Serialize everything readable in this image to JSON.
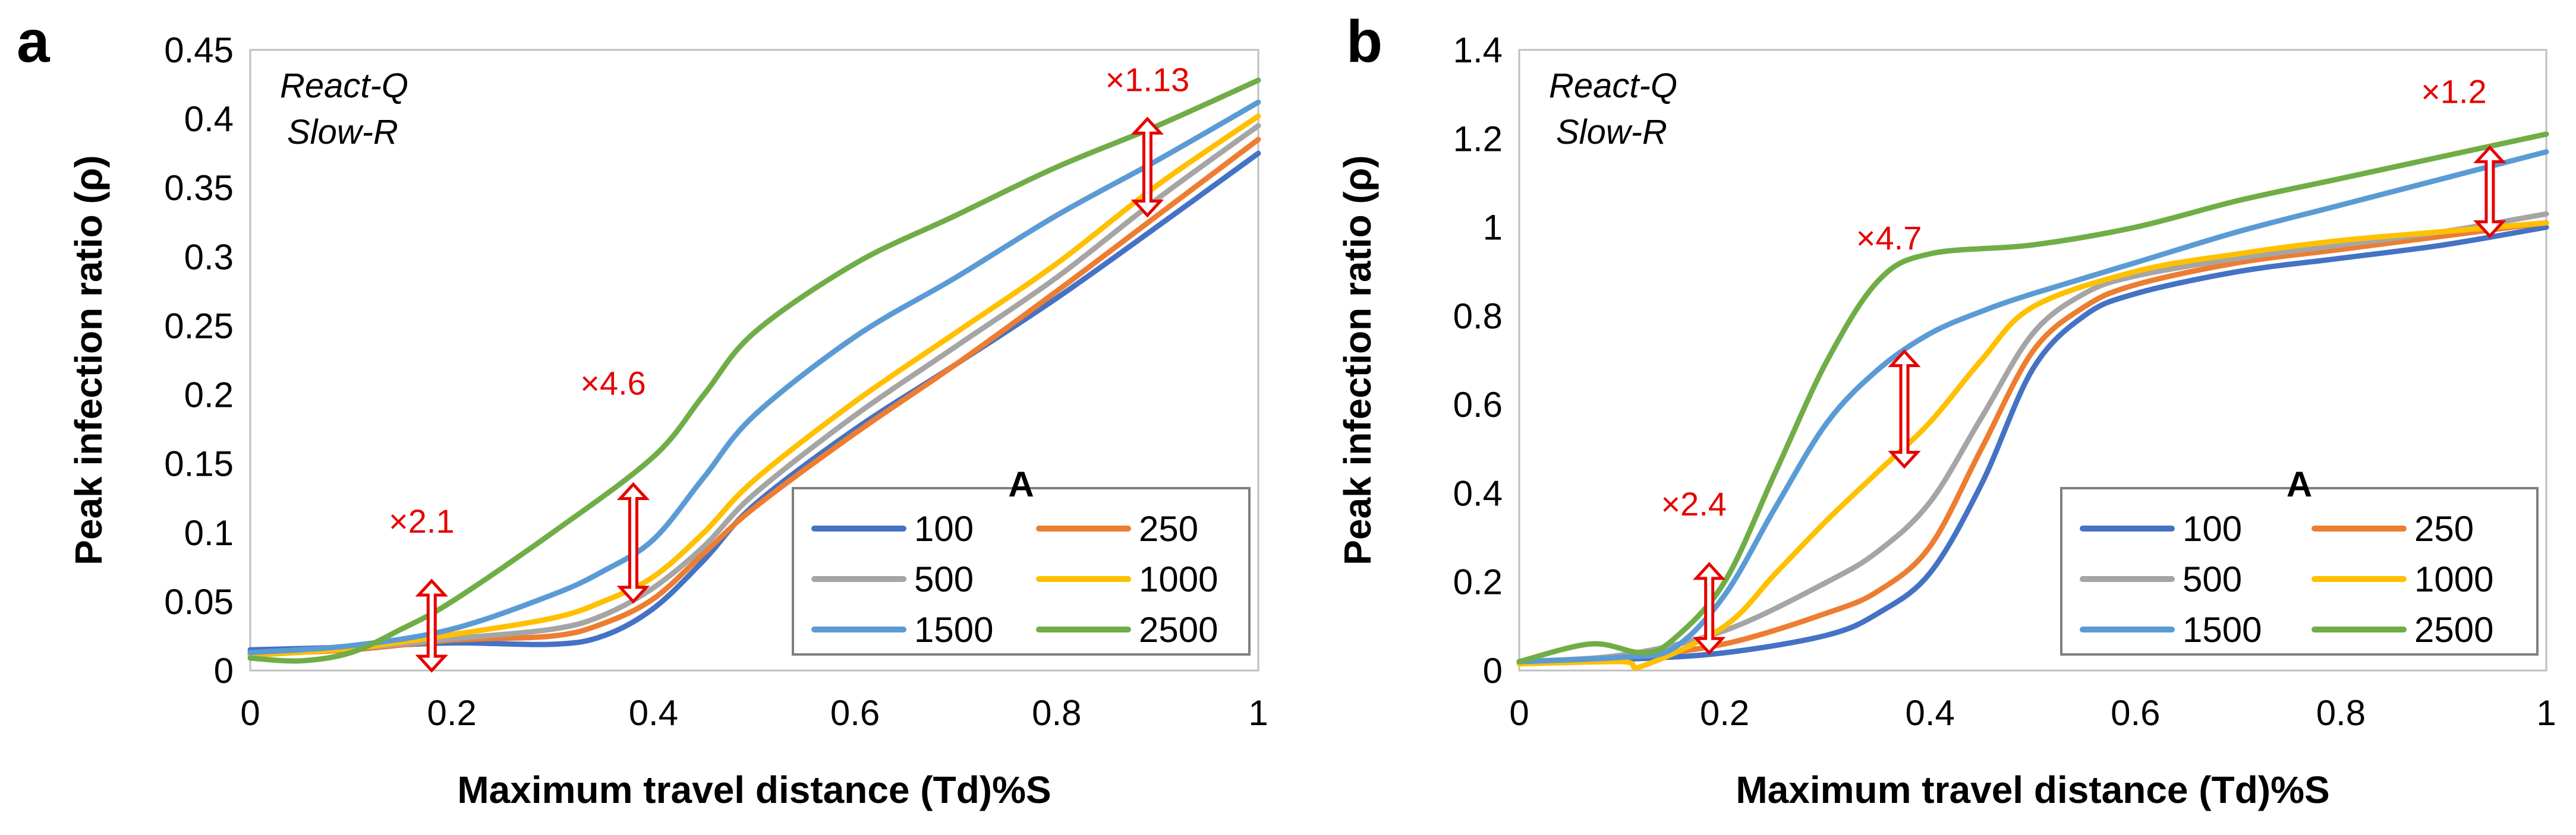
{
  "chart_data": [
    {
      "type": "line",
      "panel_label": "a",
      "conditions": [
        "React-Q",
        "Slow-R"
      ],
      "xlabel": "Maximum travel distance (Td)%S",
      "ylabel": "Peak infection ratio (ρ)",
      "xlim": [
        0,
        1
      ],
      "ylim": [
        0,
        0.45
      ],
      "xticks": [
        "0",
        "0.2",
        "0.4",
        "0.6",
        "0.8",
        "1"
      ],
      "yticks": [
        "0",
        "0.05",
        "0.1",
        "0.15",
        "0.2",
        "0.25",
        "0.3",
        "0.35",
        "0.4",
        "0.45"
      ],
      "grid": false,
      "legend": {
        "title": "A",
        "position": "bottom-right"
      },
      "series": [
        {
          "name": "100",
          "color": "#4472C4",
          "x": [
            0,
            0.1,
            0.2,
            0.3,
            0.35,
            0.4,
            0.45,
            0.5,
            0.6,
            0.7,
            0.8,
            0.9,
            1.0
          ],
          "y": [
            0.015,
            0.017,
            0.02,
            0.019,
            0.025,
            0.045,
            0.08,
            0.12,
            0.175,
            0.222,
            0.27,
            0.322,
            0.375
          ]
        },
        {
          "name": "250",
          "color": "#ED7D31",
          "x": [
            0,
            0.1,
            0.2,
            0.3,
            0.35,
            0.4,
            0.45,
            0.5,
            0.6,
            0.7,
            0.8,
            0.9,
            1.0
          ],
          "y": [
            0.012,
            0.015,
            0.022,
            0.025,
            0.034,
            0.052,
            0.085,
            0.118,
            0.172,
            0.222,
            0.275,
            0.33,
            0.385
          ]
        },
        {
          "name": "500",
          "color": "#A5A5A5",
          "x": [
            0,
            0.1,
            0.2,
            0.3,
            0.35,
            0.4,
            0.45,
            0.5,
            0.6,
            0.7,
            0.8,
            0.9,
            1.0
          ],
          "y": [
            0.013,
            0.016,
            0.023,
            0.03,
            0.04,
            0.06,
            0.09,
            0.128,
            0.185,
            0.235,
            0.285,
            0.342,
            0.395
          ]
        },
        {
          "name": "1000",
          "color": "#FFC000",
          "x": [
            0,
            0.1,
            0.2,
            0.3,
            0.35,
            0.4,
            0.45,
            0.5,
            0.6,
            0.7,
            0.8,
            0.9,
            1.0
          ],
          "y": [
            0.011,
            0.016,
            0.026,
            0.038,
            0.05,
            0.068,
            0.1,
            0.138,
            0.195,
            0.245,
            0.295,
            0.352,
            0.402
          ]
        },
        {
          "name": "1500",
          "color": "#5B9BD5",
          "x": [
            0,
            0.1,
            0.2,
            0.3,
            0.35,
            0.4,
            0.45,
            0.5,
            0.6,
            0.7,
            0.8,
            0.9,
            1.0
          ],
          "y": [
            0.013,
            0.018,
            0.03,
            0.055,
            0.072,
            0.095,
            0.14,
            0.185,
            0.242,
            0.285,
            0.33,
            0.37,
            0.412
          ]
        },
        {
          "name": "2500",
          "color": "#70AD47",
          "x": [
            0,
            0.05,
            0.1,
            0.15,
            0.2,
            0.3,
            0.4,
            0.45,
            0.5,
            0.6,
            0.7,
            0.8,
            0.9,
            1.0
          ],
          "y": [
            0.009,
            0.007,
            0.013,
            0.03,
            0.05,
            0.1,
            0.155,
            0.2,
            0.245,
            0.295,
            0.33,
            0.365,
            0.395,
            0.428
          ]
        }
      ],
      "annotations": [
        {
          "label": "×2.1",
          "x": 0.18,
          "y_low": 0.0,
          "y_high": 0.065,
          "label_x": 0.17,
          "label_y": 0.1
        },
        {
          "label": "×4.6",
          "x": 0.38,
          "y_low": 0.05,
          "y_high": 0.135,
          "label_x": 0.36,
          "label_y": 0.2
        },
        {
          "label": "×1.13",
          "x": 0.89,
          "y_low": 0.33,
          "y_high": 0.4,
          "label_x": 0.89,
          "label_y": 0.42
        }
      ]
    },
    {
      "type": "line",
      "panel_label": "b",
      "conditions": [
        "React-Q",
        "Slow-R"
      ],
      "xlabel": "Maximum travel distance (Td)%S",
      "ylabel": "Peak infection ratio (ρ)",
      "xlim": [
        0,
        1
      ],
      "ylim": [
        0,
        1.4
      ],
      "xticks": [
        "0",
        "0.2",
        "0.4",
        "0.6",
        "0.8",
        "1"
      ],
      "yticks": [
        "0",
        "0.2",
        "0.4",
        "0.6",
        "0.8",
        "1",
        "1.2",
        "1.4"
      ],
      "grid": false,
      "legend": {
        "title": "A",
        "position": "bottom-right"
      },
      "series": [
        {
          "name": "100",
          "color": "#4472C4",
          "x": [
            0,
            0.1,
            0.2,
            0.3,
            0.35,
            0.4,
            0.45,
            0.5,
            0.55,
            0.6,
            0.7,
            0.8,
            0.9,
            1.0
          ],
          "y": [
            0.02,
            0.025,
            0.04,
            0.08,
            0.13,
            0.22,
            0.42,
            0.68,
            0.8,
            0.85,
            0.9,
            0.93,
            0.96,
            1.0
          ]
        },
        {
          "name": "250",
          "color": "#ED7D31",
          "x": [
            0,
            0.1,
            0.2,
            0.3,
            0.35,
            0.4,
            0.45,
            0.5,
            0.55,
            0.6,
            0.7,
            0.8,
            0.9,
            1.0
          ],
          "y": [
            0.02,
            0.03,
            0.06,
            0.13,
            0.18,
            0.28,
            0.5,
            0.72,
            0.82,
            0.87,
            0.92,
            0.95,
            0.98,
            1.01
          ]
        },
        {
          "name": "500",
          "color": "#A5A5A5",
          "x": [
            0,
            0.1,
            0.2,
            0.3,
            0.35,
            0.4,
            0.45,
            0.5,
            0.55,
            0.6,
            0.7,
            0.8,
            0.9,
            1.0
          ],
          "y": [
            0.02,
            0.035,
            0.09,
            0.2,
            0.27,
            0.38,
            0.57,
            0.76,
            0.85,
            0.89,
            0.93,
            0.96,
            0.99,
            1.03
          ]
        },
        {
          "name": "1000",
          "color": "#FFC000",
          "x": [
            0,
            0.1,
            0.12,
            0.2,
            0.25,
            0.3,
            0.35,
            0.4,
            0.45,
            0.5,
            0.6,
            0.7,
            0.8,
            0.9,
            1.0
          ],
          "y": [
            0.015,
            0.02,
            0.01,
            0.1,
            0.22,
            0.34,
            0.45,
            0.56,
            0.7,
            0.82,
            0.9,
            0.94,
            0.97,
            0.99,
            1.01
          ]
        },
        {
          "name": "1500",
          "color": "#5B9BD5",
          "x": [
            0,
            0.1,
            0.15,
            0.2,
            0.25,
            0.3,
            0.35,
            0.4,
            0.45,
            0.5,
            0.6,
            0.7,
            0.8,
            0.9,
            1.0
          ],
          "y": [
            0.02,
            0.03,
            0.05,
            0.17,
            0.37,
            0.56,
            0.68,
            0.76,
            0.81,
            0.85,
            0.92,
            0.99,
            1.05,
            1.11,
            1.17
          ]
        },
        {
          "name": "2500",
          "color": "#70AD47",
          "x": [
            0,
            0.07,
            0.12,
            0.15,
            0.2,
            0.25,
            0.3,
            0.35,
            0.4,
            0.5,
            0.6,
            0.7,
            0.8,
            0.9,
            1.0
          ],
          "y": [
            0.02,
            0.06,
            0.04,
            0.07,
            0.2,
            0.45,
            0.7,
            0.88,
            0.94,
            0.96,
            1.0,
            1.06,
            1.11,
            1.16,
            1.21
          ]
        }
      ],
      "annotations": [
        {
          "label": "×2.4",
          "x": 0.185,
          "y_low": 0.04,
          "y_high": 0.24,
          "label_x": 0.17,
          "label_y": 0.35
        },
        {
          "label": "×4.7",
          "x": 0.375,
          "y_low": 0.46,
          "y_high": 0.72,
          "label_x": 0.36,
          "label_y": 0.95
        },
        {
          "label": "×1.2",
          "x": 0.945,
          "y_low": 0.98,
          "y_high": 1.18,
          "label_x": 0.91,
          "label_y": 1.28
        }
      ]
    }
  ]
}
